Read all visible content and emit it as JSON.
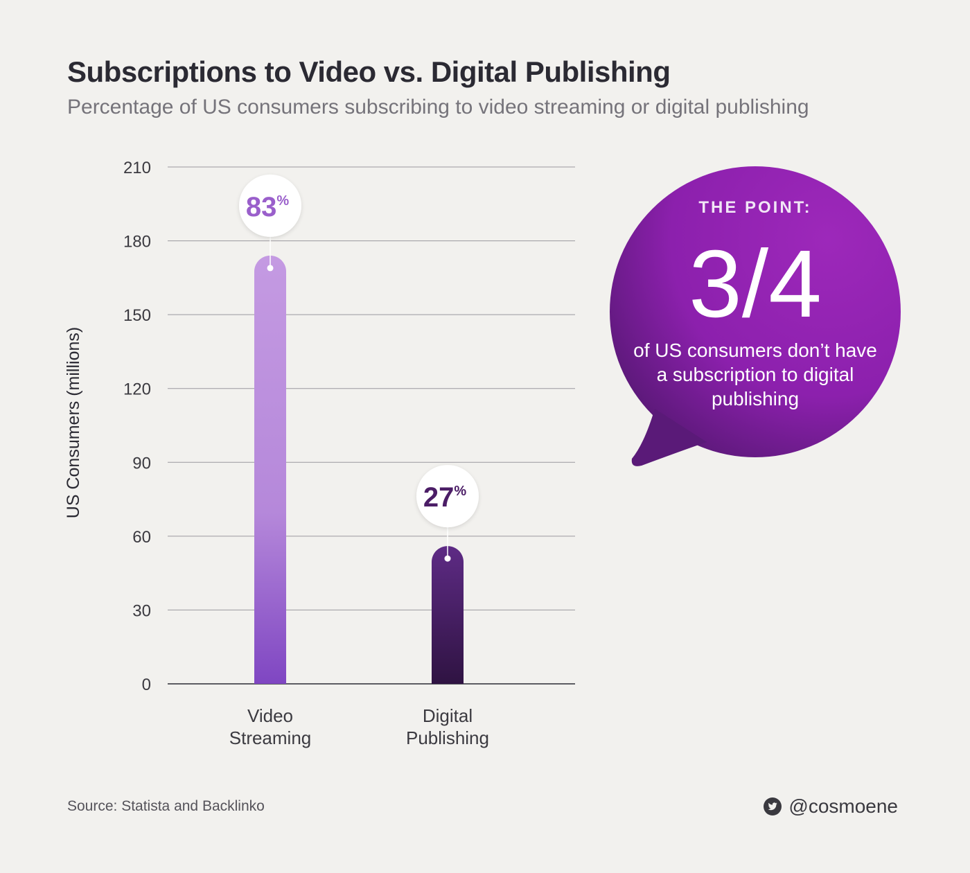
{
  "header": {
    "title": "Subscriptions to Video vs. Digital Publishing",
    "subtitle": "Percentage of US consumers subscribing to video streaming or digital publishing"
  },
  "chart_data": {
    "type": "bar",
    "categories": [
      "Video\nStreaming",
      "Digital\nPublishing"
    ],
    "values": [
      174,
      56
    ],
    "data_labels": [
      "83",
      "27"
    ],
    "data_label_suffix": "%",
    "ylabel": "US Consumers (millions)",
    "xlabel": "",
    "ylim": [
      0,
      210
    ],
    "yticks": [
      0,
      30,
      60,
      90,
      120,
      150,
      180,
      210
    ],
    "grid": true,
    "colors": {
      "bar_1_top": "#c49ae2",
      "bar_1_bottom": "#7f46c2",
      "bar_2_top": "#5e2b85",
      "bar_2_bottom": "#2f1342",
      "label_1": "#9a5fcb",
      "label_2": "#4b1d66"
    }
  },
  "callout": {
    "heading": "THE POINT:",
    "big": "3/4",
    "text": "of US consumers don’t have a subscription to digital publishing",
    "color": "#8f22ae"
  },
  "footer": {
    "source": "Source: Statista and Backlinko",
    "handle": "@cosmoene",
    "handle_icon": "twitter-icon"
  }
}
